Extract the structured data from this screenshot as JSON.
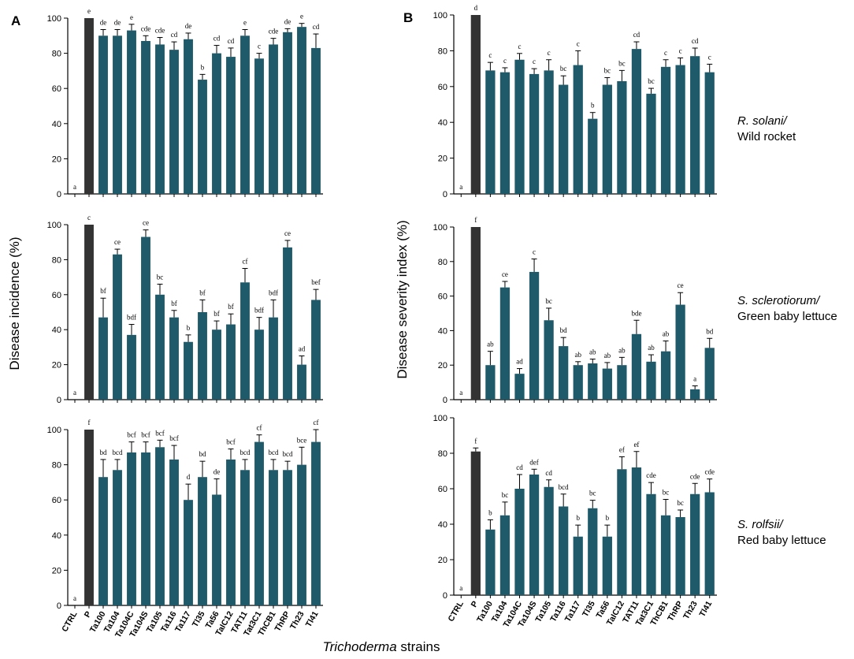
{
  "panel_labels": [
    "A",
    "B"
  ],
  "ylabel_left": "Disease incidence (%)",
  "ylabel_right": "Disease severity index (%)",
  "xlabel_italic": "Trichoderma",
  "xlabel_rest": " strains",
  "colors": {
    "control": "#333333",
    "treatment": "#1e5a6a",
    "axis": "#000000"
  },
  "rows": [
    {
      "pathogen": "R. solani/",
      "host": "Wild rocket"
    },
    {
      "pathogen": "S. sclerotiorum/",
      "host": "Green baby lettuce"
    },
    {
      "pathogen": "S. rolfsii/",
      "host": "Red baby lettuce"
    }
  ],
  "chart_data": [
    {
      "id": "A1",
      "type": "bar",
      "panel": "A",
      "row": 0,
      "ylim": [
        0,
        100
      ],
      "yticks": [
        0,
        20,
        40,
        60,
        80,
        100
      ],
      "categories": [
        "CTRL",
        "P",
        "Ta100",
        "Ta104",
        "Ta104C",
        "Ta104S",
        "Ta105",
        "Ta116",
        "Ta117",
        "Tl35",
        "Ta56",
        "TaIC12",
        "TAT11",
        "Tat3C1",
        "ThCB1",
        "ThRP",
        "Th23",
        "Tl41"
      ],
      "values": [
        0,
        100,
        90,
        90,
        93,
        87,
        85,
        82,
        88,
        65,
        80,
        78,
        90,
        77,
        85,
        92,
        95,
        83
      ],
      "errors": [
        0,
        0,
        3.5,
        3.5,
        3.5,
        3,
        4,
        4.5,
        3.5,
        3,
        4.5,
        5,
        3.5,
        3,
        3.5,
        2,
        2,
        8
      ],
      "letters": [
        "a",
        "e",
        "de",
        "de",
        "e",
        "cde",
        "cde",
        "cd",
        "de",
        "b",
        "cd",
        "cd",
        "e",
        "c",
        "cde",
        "de",
        "e",
        "cd"
      ]
    },
    {
      "id": "B1",
      "type": "bar",
      "panel": "B",
      "row": 0,
      "ylim": [
        0,
        100
      ],
      "yticks": [
        0,
        20,
        40,
        60,
        80,
        100
      ],
      "categories": [
        "CTRL",
        "P",
        "Ta100",
        "Ta104",
        "Ta104C",
        "Ta104S",
        "Ta105",
        "Ta116",
        "Ta117",
        "Tl35",
        "Ta56",
        "TaIC12",
        "TAT11",
        "Tat3C1",
        "ThCB1",
        "ThRP",
        "Th23",
        "Tl41"
      ],
      "values": [
        0,
        100,
        69,
        68,
        75,
        67,
        69,
        61,
        72,
        42,
        61,
        63,
        81,
        56,
        71,
        72,
        77,
        68
      ],
      "errors": [
        0,
        0,
        4.5,
        2.5,
        3.5,
        3,
        6,
        5,
        8,
        3.5,
        4,
        6,
        4,
        3,
        4,
        4,
        4.5,
        4.5
      ],
      "letters": [
        "a",
        "d",
        "c",
        "c",
        "c",
        "c",
        "c",
        "bc",
        "c",
        "b",
        "bc",
        "bc",
        "cd",
        "bc",
        "c",
        "c",
        "cd",
        "c"
      ]
    },
    {
      "id": "A2",
      "type": "bar",
      "panel": "A",
      "row": 1,
      "ylim": [
        0,
        100
      ],
      "yticks": [
        0,
        20,
        40,
        60,
        80,
        100
      ],
      "categories": [
        "CTRL",
        "P",
        "Ta100",
        "Ta104",
        "Ta104C",
        "Ta104S",
        "Ta105",
        "Ta116",
        "Ta117",
        "Tl35",
        "Ta56",
        "TaIC12",
        "TAT11",
        "Tat3C1",
        "ThCB1",
        "ThRP",
        "Th23",
        "Tl41"
      ],
      "values": [
        0,
        100,
        47,
        83,
        37,
        93,
        60,
        47,
        33,
        50,
        40,
        43,
        67,
        40,
        47,
        87,
        20,
        57
      ],
      "errors": [
        0,
        0,
        11,
        3,
        6,
        4,
        6,
        4,
        4,
        7,
        5,
        6,
        8,
        7,
        10,
        4,
        5,
        6
      ],
      "letters": [
        "a",
        "c",
        "bf",
        "ce",
        "bdf",
        "ce",
        "bc",
        "bf",
        "b",
        "bf",
        "bf",
        "bf",
        "cf",
        "bdf",
        "bdf",
        "ce",
        "ad",
        "bef"
      ]
    },
    {
      "id": "B2",
      "type": "bar",
      "panel": "B",
      "row": 1,
      "ylim": [
        0,
        100
      ],
      "yticks": [
        0,
        20,
        40,
        60,
        80,
        100
      ],
      "categories": [
        "CTRL",
        "P",
        "Ta100",
        "Ta104",
        "Ta104C",
        "Ta104S",
        "Ta105",
        "Ta116",
        "Ta117",
        "Tl35",
        "Ta56",
        "TaIC12",
        "TAT11",
        "Tat3C1",
        "ThCB1",
        "ThRP",
        "Th23",
        "Tl41"
      ],
      "values": [
        0,
        100,
        20,
        65,
        15,
        74,
        46,
        31,
        20,
        21,
        18,
        20,
        38,
        22,
        28,
        55,
        6,
        30
      ],
      "errors": [
        0,
        0,
        8,
        3.5,
        3,
        7.5,
        7,
        5,
        2,
        2.5,
        3.5,
        4.5,
        8,
        4,
        6,
        7,
        2,
        5.5
      ],
      "letters": [
        "a",
        "f",
        "ab",
        "ce",
        "ad",
        "c",
        "bc",
        "bd",
        "ab",
        "ab",
        "ab",
        "ab",
        "bde",
        "ab",
        "ab",
        "ce",
        "a",
        "bd"
      ]
    },
    {
      "id": "A3",
      "type": "bar",
      "panel": "A",
      "row": 2,
      "ylim": [
        0,
        100
      ],
      "yticks": [
        0,
        20,
        40,
        60,
        80,
        100
      ],
      "categories": [
        "CTRL",
        "P",
        "Ta100",
        "Ta104",
        "Ta104C",
        "Ta104S",
        "Ta105",
        "Ta116",
        "Ta117",
        "Tl35",
        "Ta56",
        "TaIC12",
        "TAT11",
        "Tat3C1",
        "ThCB1",
        "ThRP",
        "Th23",
        "Tl41"
      ],
      "values": [
        0,
        100,
        73,
        77,
        87,
        87,
        90,
        83,
        60,
        73,
        63,
        83,
        77,
        93,
        77,
        77,
        80,
        93
      ],
      "errors": [
        0,
        0,
        10,
        6,
        6,
        6,
        4,
        8,
        9,
        9,
        9,
        6,
        6,
        4,
        6,
        5,
        10,
        7
      ],
      "letters": [
        "a",
        "f",
        "bd",
        "bcd",
        "bcf",
        "bcf",
        "bcf",
        "bcf",
        "d",
        "bd",
        "de",
        "bcf",
        "bcd",
        "cf",
        "bcd",
        "bcd",
        "bce",
        "cf"
      ]
    },
    {
      "id": "B3",
      "type": "bar",
      "panel": "B",
      "row": 2,
      "ylim": [
        0,
        100
      ],
      "yticks": [
        0,
        20,
        40,
        60,
        80,
        100
      ],
      "categories": [
        "CTRL",
        "P",
        "Ta100",
        "Ta104",
        "Ta104C",
        "Ta104S",
        "Ta105",
        "Ta116",
        "Ta117",
        "Tl35",
        "Ta56",
        "TaIC12",
        "TAT11",
        "Tat3C1",
        "ThCB1",
        "ThRP",
        "Th23",
        "Tl41"
      ],
      "values": [
        0,
        81,
        37,
        45,
        60,
        68,
        61,
        50,
        33,
        49,
        33,
        71,
        72,
        57,
        45,
        44,
        57,
        58
      ],
      "errors": [
        0,
        2,
        5.5,
        7.5,
        8,
        3,
        4,
        7,
        6.5,
        4.5,
        6.5,
        7,
        9,
        6.5,
        9,
        4,
        6,
        7.5
      ],
      "letters": [
        "a",
        "f",
        "b",
        "bc",
        "cd",
        "def",
        "cd",
        "bcd",
        "b",
        "bc",
        "b",
        "ef",
        "ef",
        "cde",
        "bc",
        "bc",
        "cde",
        "cde"
      ]
    }
  ]
}
